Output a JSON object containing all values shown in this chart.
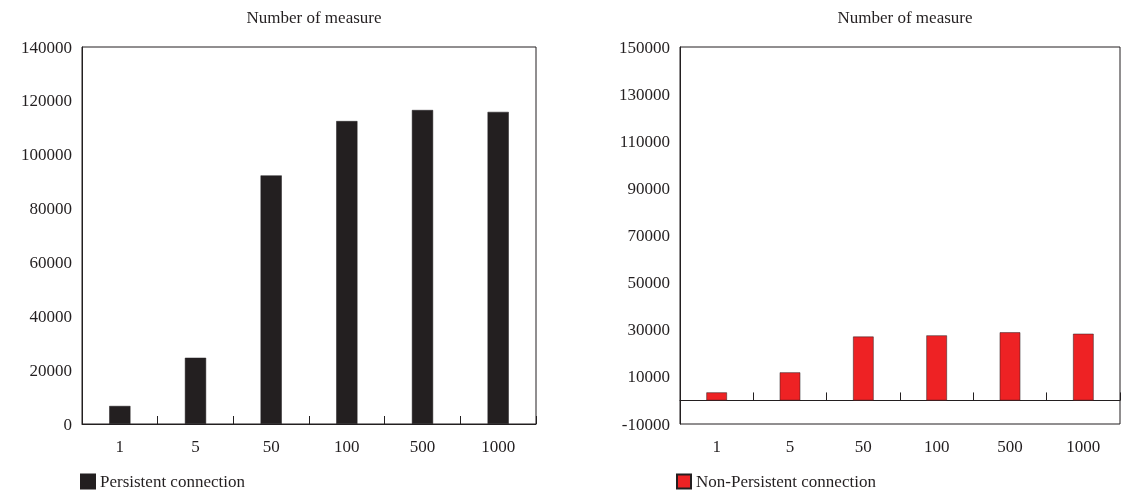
{
  "chart_data": [
    {
      "type": "bar",
      "title": "Number of measure",
      "categories": [
        "1",
        "5",
        "50",
        "100",
        "500",
        "1000"
      ],
      "series": [
        {
          "name": "Persistent connection",
          "color": "#231f20",
          "values": [
            6700,
            24600,
            92300,
            112500,
            116600,
            115900
          ]
        }
      ],
      "ylim": [
        0,
        140000
      ],
      "yticks": [
        0,
        20000,
        40000,
        60000,
        80000,
        100000,
        120000,
        140000
      ],
      "grid": false,
      "legend": "bottom left"
    },
    {
      "type": "bar",
      "title": "Number of measure",
      "categories": [
        "1",
        "5",
        "50",
        "100",
        "500",
        "1000"
      ],
      "series": [
        {
          "name": "Non-Persistent connection",
          "color": "#ee2224",
          "values": [
            3400,
            11900,
            27100,
            27600,
            28900,
            28300
          ]
        }
      ],
      "ylim": [
        -10000,
        150000
      ],
      "yticks": [
        -10000,
        10000,
        30000,
        50000,
        70000,
        90000,
        110000,
        130000,
        150000
      ],
      "grid": false,
      "legend": "bottom left"
    }
  ]
}
